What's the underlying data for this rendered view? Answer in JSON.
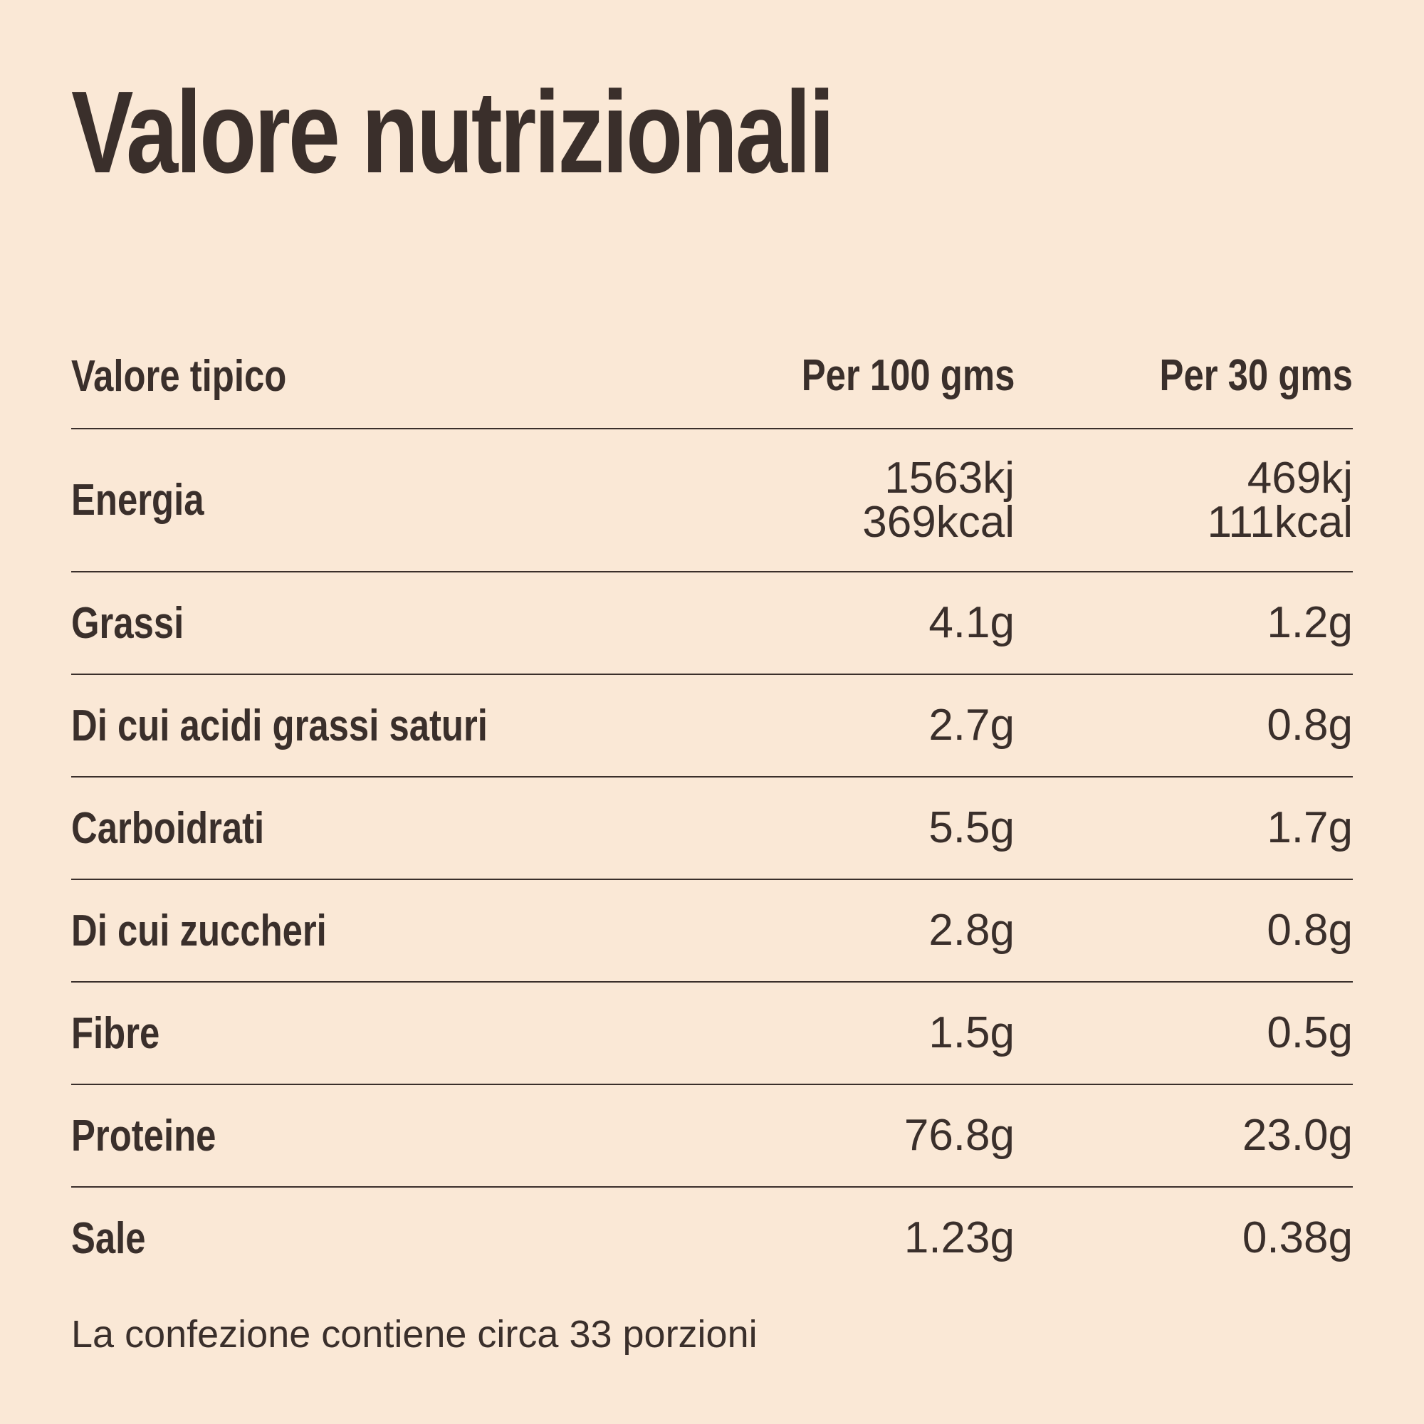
{
  "header": {
    "title": "Valore nutrizionali"
  },
  "table": {
    "columns": [
      "Valore tipico",
      "Per 100 gms",
      "Per 30 gms"
    ],
    "rows": [
      [
        "Energia",
        [
          "1563kj",
          "369kcal"
        ],
        [
          "469kj",
          "111kcal"
        ]
      ],
      [
        "Grassi",
        "4.1g",
        "1.2g"
      ],
      [
        "Di cui acidi grassi saturi",
        "2.7g",
        "0.8g"
      ],
      [
        "Carboidrati",
        "5.5g",
        "1.7g"
      ],
      [
        "Di cui zuccheri",
        "2.8g",
        "0.8g"
      ],
      [
        "Fibre",
        "1.5g",
        "0.5g"
      ],
      [
        "Proteine",
        "76.8g",
        "23.0g"
      ],
      [
        "Sale",
        "1.23g",
        "0.38g"
      ]
    ]
  },
  "footer": {
    "note": "La confezione contiene circa 33 porzioni"
  }
}
